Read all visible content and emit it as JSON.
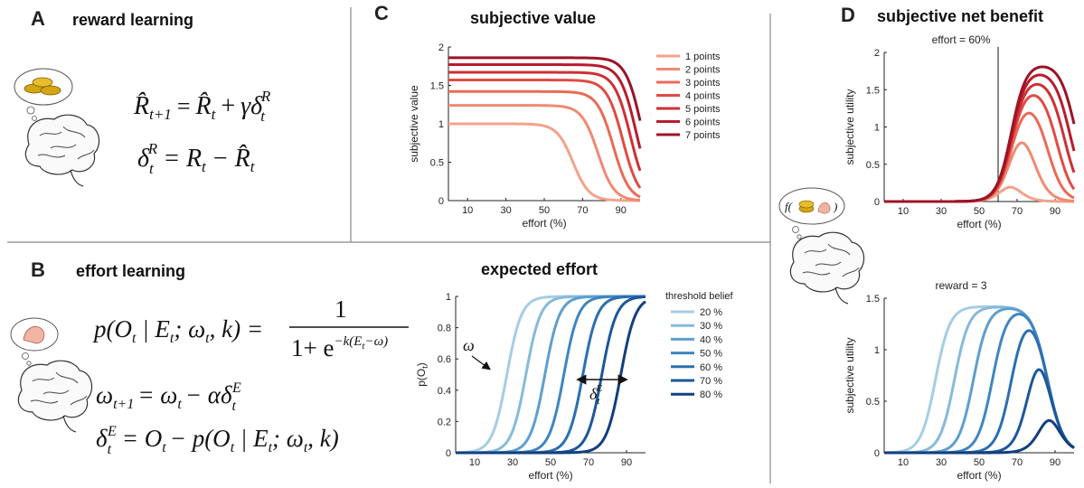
{
  "panels": {
    "A": {
      "letter": "A",
      "title": "reward learning"
    },
    "B": {
      "letter": "B",
      "title": "effort learning"
    },
    "C": {
      "letter": "C",
      "title": "subjective value"
    },
    "E": {
      "title": "expected effort"
    },
    "D": {
      "letter": "D",
      "title": "subjective net benefit"
    }
  },
  "equations": {
    "A1": {
      "lhs": "R̂",
      "lhs_sub": "t+1",
      "eq": "=",
      "rhs1": "R̂",
      "rhs1_sub": "t",
      "plus": "+",
      "gamma": "γδ",
      "gamma_sub": "t",
      "gamma_sup": "R"
    },
    "A2": {
      "delta": "δ",
      "sub": "t",
      "sup": "R",
      "eq": "=",
      "r": "R",
      "r_sub": "t",
      "minus": "−",
      "rhat": "R̂",
      "rhat_sub": "t"
    },
    "B1": {
      "lhs": "p(O",
      "lhs_sub": "t",
      "mid": " | E",
      "mid_sub": "t",
      "tail": "; ω",
      "tail_sub": "t",
      "end": ", k) =",
      "num": "1",
      "den": "1+ e",
      "exp": "−k(E",
      "exp_sub": "t",
      "exp_end": "−ω)"
    },
    "B2": {
      "lhs": "ω",
      "lhs_sub": "t+1",
      "eq": "= ω",
      "eq_sub": "t",
      "rest": "− αδ",
      "rest_sub": "t",
      "rest_sup": "E"
    },
    "B3": {
      "lhs": "δ",
      "lhs_sub": "t",
      "lhs_sup": "E",
      "eq": "= O",
      "eq_sub": "t",
      "rest": "− p(O",
      "rest_sub": "t",
      "rest2": " | E",
      "rest2_sub": "t",
      "rest3": "; ω",
      "rest3_sub": "t",
      "end": ", k)"
    }
  },
  "annotations": {
    "omega": "ω",
    "delta_e": "δ",
    "delta_e_sub": "t",
    "delta_e_sup": "E",
    "f_label": "f(",
    "f_close": ")"
  },
  "chart_data": [
    {
      "id": "C",
      "type": "line",
      "title": "subjective value",
      "xlabel": "effort (%)",
      "ylabel": "subjective value",
      "xlim": [
        0,
        100
      ],
      "ylim": [
        0,
        2
      ],
      "xticks": [
        10,
        30,
        50,
        70,
        90
      ],
      "yticks": [
        0,
        0.5,
        1,
        1.5,
        2
      ],
      "legend_position": "right",
      "series": [
        {
          "name": "1 points",
          "color": "#f4a28a",
          "max": 1.0,
          "mid": 65
        },
        {
          "name": "2 points",
          "color": "#f08a72",
          "max": 1.24,
          "mid": 78
        },
        {
          "name": "3 points",
          "color": "#ea6a57",
          "max": 1.42,
          "mid": 86
        },
        {
          "name": "4 points",
          "color": "#e14b44",
          "max": 1.57,
          "mid": 91
        },
        {
          "name": "5 points",
          "color": "#cf3034",
          "max": 1.67,
          "mid": 95
        },
        {
          "name": "6 points",
          "color": "#b71c2c",
          "max": 1.77,
          "mid": 98
        },
        {
          "name": "7 points",
          "color": "#9c1426",
          "max": 1.86,
          "mid": 101
        }
      ]
    },
    {
      "id": "E",
      "type": "line",
      "title": "expected effort",
      "xlabel": "effort (%)",
      "ylabel": "p(O",
      "ylabel_sub": "t",
      "ylabel_end": ")",
      "xlim": [
        0,
        100
      ],
      "ylim": [
        0,
        1
      ],
      "xticks": [
        10,
        30,
        50,
        70,
        90
      ],
      "yticks": [
        0,
        0.2,
        0.4,
        0.6,
        0.8,
        1
      ],
      "legend_title": "threshold belief",
      "legend_position": "right",
      "series": [
        {
          "name": "20 %",
          "color": "#a6cde3",
          "omega": 20
        },
        {
          "name": "30 %",
          "color": "#86bada",
          "omega": 30
        },
        {
          "name": "40 %",
          "color": "#5e9fcf",
          "omega": 40
        },
        {
          "name": "50 %",
          "color": "#3f86c2",
          "omega": 50
        },
        {
          "name": "60 %",
          "color": "#2b6fb1",
          "omega": 60
        },
        {
          "name": "70 %",
          "color": "#1c579b",
          "omega": 70
        },
        {
          "name": "80 %",
          "color": "#123f7d",
          "omega": 80
        }
      ]
    },
    {
      "id": "D1",
      "type": "line",
      "title": "effort = 60%",
      "xlabel": "effort (%)",
      "ylabel": "subjective utility",
      "xlim": [
        0,
        100
      ],
      "ylim": [
        0,
        2
      ],
      "xticks": [
        10,
        30,
        50,
        70,
        90
      ],
      "yticks": [
        0,
        0.5,
        1,
        1.5,
        2
      ],
      "vline": 60,
      "series": [
        {
          "name": "1 points",
          "color": "#f4a28a",
          "max": 1.0,
          "mid": 65
        },
        {
          "name": "2 points",
          "color": "#f08a72",
          "max": 1.24,
          "mid": 78
        },
        {
          "name": "3 points",
          "color": "#ea6a57",
          "max": 1.42,
          "mid": 86
        },
        {
          "name": "4 points",
          "color": "#e14b44",
          "max": 1.57,
          "mid": 91
        },
        {
          "name": "5 points",
          "color": "#cf3034",
          "max": 1.67,
          "mid": 95
        },
        {
          "name": "6 points",
          "color": "#b71c2c",
          "max": 1.77,
          "mid": 98
        },
        {
          "name": "7 points",
          "color": "#9c1426",
          "max": 1.86,
          "mid": 101
        }
      ]
    },
    {
      "id": "D2",
      "type": "line",
      "title": "reward = 3",
      "xlabel": "effort (%)",
      "ylabel": "subjective utility",
      "xlim": [
        0,
        100
      ],
      "ylim": [
        0,
        1.5
      ],
      "xticks": [
        10,
        30,
        50,
        70,
        90
      ],
      "yticks": [
        0,
        0.5,
        1,
        1.5
      ],
      "series": [
        {
          "name": "20 %",
          "color": "#a6cde3",
          "omega": 20
        },
        {
          "name": "30 %",
          "color": "#86bada",
          "omega": 30
        },
        {
          "name": "40 %",
          "color": "#5e9fcf",
          "omega": 40
        },
        {
          "name": "50 %",
          "color": "#3f86c2",
          "omega": 50
        },
        {
          "name": "60 %",
          "color": "#2b6fb1",
          "omega": 60
        },
        {
          "name": "70 %",
          "color": "#1c579b",
          "omega": 70
        },
        {
          "name": "80 %",
          "color": "#123f7d",
          "omega": 80
        }
      ]
    }
  ]
}
